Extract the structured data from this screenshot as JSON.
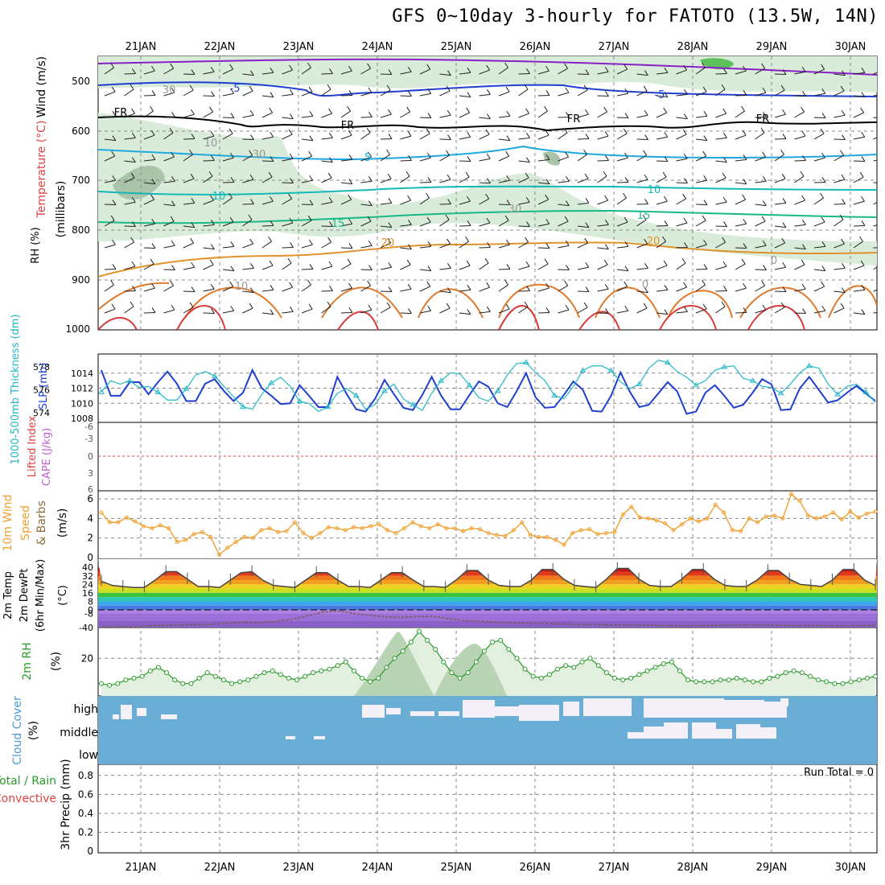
{
  "title": "GFS 0~10day 3-hourly for FATOTO (13.5W, 14N)",
  "days": [
    "21JAN",
    "22JAN",
    "23JAN",
    "24JAN",
    "25JAN",
    "26JAN",
    "27JAN",
    "28JAN",
    "29JAN",
    "30JAN"
  ],
  "panels": {
    "upper": {
      "label_rh": "RH (%)",
      "label_temp": "Temperature (°C)",
      "label_wind": "Wind (m/s)",
      "label_mb": "(millibars)",
      "yticks": [
        "500",
        "600",
        "700",
        "800",
        "900",
        "1000"
      ],
      "contour_labels": [
        "-5",
        "FR",
        "5",
        "10",
        "15",
        "20",
        "30",
        "10",
        "0"
      ],
      "freezing_label": "FR"
    },
    "thickness": {
      "label_thick": "1000-500mb Thickness (dm)",
      "label_slp": "SLP (mb)",
      "yticks_left": [
        "578",
        "576",
        "574"
      ],
      "yticks_right": [
        "1014",
        "1012",
        "1010",
        "1008"
      ]
    },
    "li": {
      "label_li": "Lifted Index",
      "label_cape": "CAPE (J/kg)",
      "yticks": [
        "-6",
        "-3",
        "0",
        "3",
        "6"
      ]
    },
    "wind10": {
      "label1": "10m Wind",
      "label2": "Speed",
      "label3": "& Barbs",
      "unit": "(m/s)",
      "yticks": [
        "6",
        "4",
        "2",
        "0"
      ]
    },
    "temp2m": {
      "label1": "2m Temp",
      "label2": "2m DewPt",
      "label3": "(6hr Min/Max)",
      "unit": "(°C)",
      "yticks": [
        "40",
        "32",
        "24",
        "16",
        "8",
        "0",
        "-8",
        "-40"
      ]
    },
    "rh2m": {
      "label": "2m RH",
      "unit": "(%)",
      "yticks": [
        "20"
      ]
    },
    "cloud": {
      "label": "Cloud Cover",
      "unit": "(%)",
      "levels": [
        "high",
        "middle",
        "low"
      ]
    },
    "precip": {
      "label1": "Total / Rain",
      "label2": "Convective",
      "label3": "3hr Precip (mm)",
      "run_total": "Run Total = 0",
      "yticks": [
        "0.8",
        "0.6",
        "0.4",
        "0.2",
        "0"
      ]
    }
  },
  "colors": {
    "grid": "#888888",
    "rh_fill": "#d9ecd9",
    "rh_dark": "#a9c4a9",
    "thick": "#22b8c8",
    "slp": "#1f3fcf",
    "wind_speed": "#f0a030",
    "temp_line": "#444444",
    "rh_line": "#2a9a2a",
    "cloud": "#6aaed6",
    "cloud_gap": "#f4f0f8"
  },
  "chart_data": [
    {
      "type": "line",
      "title": "1000-500mb Thickness / SLP",
      "x_start": "20 JAN 12Z",
      "x_step_hours": 3,
      "series": [
        {
          "name": "SLP (mb)",
          "values": [
            1014.4,
            1011.0,
            1011.0,
            1012.8,
            1012.8,
            1011.2,
            1012.8,
            1014.2,
            1012.6,
            1010.3,
            1010.3,
            1012.6,
            1013.2,
            1011.6,
            1010.3,
            1011.4,
            1014.4,
            1012.0,
            1011.0,
            1009.9,
            1010.0,
            1012.4,
            1011.0,
            1009.5,
            1009.5,
            1013.5,
            1011.2,
            1009.2,
            1008.9,
            1010.6,
            1013.1,
            1011.2,
            1009.4,
            1009.1,
            1011.1,
            1013.5,
            1011.0,
            1009.2,
            1009.2,
            1011.1,
            1012.9,
            1012.2,
            1010.0,
            1009.5,
            1011.6,
            1014.0,
            1010.8,
            1009.4,
            1009.5,
            1011.1,
            1012.9,
            1011.8,
            1009.0,
            1008.9,
            1011.0,
            1014.1,
            1011.5,
            1009.5,
            1009.8,
            1011.3,
            1012.8,
            1011.6,
            1008.6,
            1008.9,
            1011.4,
            1012.4,
            1011.0,
            1009.4,
            1009.8,
            1011.4,
            1013.2,
            1012.5,
            1009.1,
            1009.2,
            1012.0,
            1013.5,
            1011.8,
            1010.1,
            1010.4,
            1011.4,
            1012.3,
            1011.3,
            1010.3
          ]
        },
        {
          "name": "1000-500mb Thickness (dm)",
          "values": [
            575.8,
            576.8,
            576.5,
            576.8,
            576.2,
            576.3,
            575.8,
            575.1,
            575.1,
            576.1,
            577.3,
            577.6,
            577.2,
            576.3,
            575.4,
            574.5,
            574.3,
            575.6,
            576.6,
            577.1,
            576.3,
            575.0,
            574.8,
            574.1,
            574.5,
            575.7,
            576.1,
            575.5,
            574.3,
            574.7,
            575.9,
            576.5,
            575.2,
            574.7,
            574.2,
            575.7,
            576.8,
            577.5,
            577.4,
            576.4,
            575.3,
            575.0,
            575.9,
            577.3,
            578.3,
            578.4,
            577.5,
            576.8,
            575.5,
            575.2,
            576.3,
            577.7,
            578.1,
            578.1,
            577.7,
            576.7,
            576.1,
            576.5,
            577.9,
            578.6,
            578.4,
            577.6,
            577.1,
            576.4,
            576.8,
            577.7,
            578.0,
            578.1,
            577.0,
            576.8,
            576.3,
            576.2,
            575.7,
            576.5,
            577.5,
            578.1,
            577.9,
            576.5,
            575.6,
            576.3,
            576.5,
            575.8,
            574.9
          ]
        }
      ]
    },
    {
      "type": "line",
      "title": "10m Wind Speed (m/s)",
      "series": [
        {
          "name": "10m Wind Speed",
          "values": [
            4.6,
            3.6,
            3.6,
            4.1,
            3.7,
            3.2,
            3.0,
            3.3,
            3.0,
            1.6,
            1.8,
            2.4,
            2.6,
            2.1,
            0.3,
            1.0,
            1.6,
            2.1,
            2.0,
            2.8,
            3.0,
            2.6,
            2.7,
            3.6,
            2.5,
            2.0,
            2.5,
            3.1,
            3.0,
            2.8,
            3.1,
            3.0,
            3.2,
            3.4,
            2.8,
            2.5,
            3.0,
            3.6,
            3.2,
            3.0,
            3.4,
            3.0,
            3.0,
            2.7,
            3.0,
            2.9,
            2.5,
            2.3,
            2.2,
            2.8,
            3.6,
            2.3,
            2.1,
            2.1,
            1.8,
            1.3,
            2.5,
            2.8,
            2.9,
            2.4,
            2.5,
            2.6,
            4.4,
            5.2,
            4.1,
            4.0,
            3.8,
            3.5,
            2.8,
            3.4,
            4.0,
            3.7,
            4.0,
            5.4,
            4.6,
            2.8,
            2.7,
            4.0,
            3.6,
            4.2,
            4.3,
            4.0,
            6.5,
            5.8,
            4.3,
            4.0,
            4.2,
            4.6,
            3.9,
            4.7,
            4.1,
            4.5,
            4.7
          ]
        }
      ]
    },
    {
      "type": "line",
      "title": "2m Temp (°C)",
      "series": [
        {
          "name": "2m Temp",
          "values": [
            27,
            23,
            22,
            21,
            21,
            28,
            36,
            36,
            29,
            22,
            22,
            21,
            28,
            35,
            36,
            28,
            23,
            22,
            21,
            28,
            35,
            35,
            28,
            22,
            22,
            21,
            28,
            35,
            35,
            28,
            22,
            22,
            21,
            28,
            37,
            37,
            28,
            23,
            22,
            22,
            28,
            38,
            38,
            29,
            23,
            22,
            21,
            29,
            39,
            39,
            29,
            23,
            22,
            22,
            29,
            38,
            38,
            29,
            23,
            22,
            22,
            28,
            37,
            37,
            29,
            24,
            23,
            22,
            28,
            38,
            38,
            28,
            23
          ]
        },
        {
          "name": "2m DewPt",
          "values": [
            -39,
            -38,
            -38,
            -36,
            -35,
            -34,
            -33,
            -33,
            -30,
            -28,
            -29,
            -26,
            -22,
            -14,
            -5,
            -3,
            -8,
            -12,
            -16,
            -17,
            -15,
            -15,
            -20,
            -24,
            -26,
            -28,
            -30,
            -30,
            -31,
            -32,
            -33,
            -33,
            -34,
            -34,
            -34,
            -35,
            -36,
            -36,
            -36,
            -35,
            -34,
            -34,
            -34,
            -35,
            -36,
            -35,
            -36,
            -36,
            -36,
            -35
          ]
        }
      ]
    },
    {
      "type": "line",
      "title": "2m RH (%)",
      "series": [
        {
          "name": "2m RH",
          "values": [
            6,
            5,
            6,
            8,
            9,
            10,
            13,
            15,
            12,
            8,
            6,
            6,
            9,
            12,
            10,
            8,
            6,
            7,
            8,
            10,
            12,
            13,
            11,
            9,
            8,
            10,
            12,
            13,
            14,
            16,
            18,
            13,
            9,
            7,
            9,
            15,
            20,
            24,
            29,
            35,
            30,
            25,
            18,
            12,
            9,
            12,
            18,
            24,
            29,
            30,
            25,
            20,
            14,
            10,
            9,
            11,
            14,
            16,
            15,
            18,
            20,
            16,
            12,
            9,
            8,
            9,
            11,
            13,
            15,
            17,
            18,
            13,
            8,
            7,
            7,
            7,
            8,
            8,
            9,
            8,
            7,
            7,
            9,
            10,
            12,
            13,
            12,
            10,
            8,
            7,
            6,
            6,
            7,
            8,
            9,
            10
          ]
        }
      ]
    }
  ]
}
